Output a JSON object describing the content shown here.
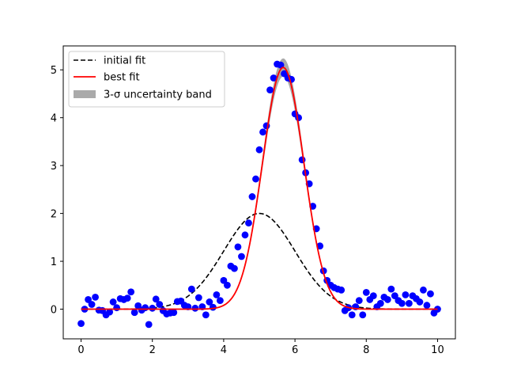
{
  "chart_data": {
    "type": "scatter",
    "title": "",
    "xlabel": "",
    "ylabel": "",
    "xlim": [
      -0.5,
      10.5
    ],
    "ylim": [
      -0.62,
      5.5
    ],
    "xticks": [
      0,
      2,
      4,
      6,
      8,
      10
    ],
    "yticks": [
      0,
      1,
      2,
      3,
      4,
      5
    ],
    "grid": false,
    "legend_position": "top-left",
    "colors": {
      "points": "#0000ff",
      "initial_fit": "#000000",
      "best_fit": "#ff0000",
      "band": "#aaaaaa"
    },
    "legend": [
      {
        "key": "initial_fit",
        "label": "initial fit",
        "style": "dashed-line"
      },
      {
        "key": "best_fit",
        "label": "best fit",
        "style": "solid-line"
      },
      {
        "key": "band",
        "label": "3-σ uncertainty band",
        "style": "patch"
      }
    ],
    "initial_fit": {
      "amplitude": 2.0,
      "center": 5.0,
      "sigma": 1.0
    },
    "best_fit": {
      "amplitude": 5.05,
      "center": 5.67,
      "sigma": 0.58
    },
    "band": {
      "half_width_at_peak": 0.18
    },
    "fit_x_range": [
      0,
      10
    ],
    "points": {
      "x": [
        0.0,
        0.1,
        0.2,
        0.3,
        0.4,
        0.5,
        0.6,
        0.7,
        0.8,
        0.9,
        1.0,
        1.1,
        1.2,
        1.3,
        1.4,
        1.5,
        1.6,
        1.7,
        1.8,
        1.9,
        2.0,
        2.1,
        2.2,
        2.3,
        2.4,
        2.5,
        2.6,
        2.7,
        2.8,
        2.9,
        3.0,
        3.1,
        3.2,
        3.3,
        3.4,
        3.5,
        3.6,
        3.7,
        3.8,
        3.9,
        4.0,
        4.1,
        4.2,
        4.3,
        4.4,
        4.5,
        4.6,
        4.7,
        4.8,
        4.9,
        5.0,
        5.1,
        5.2,
        5.3,
        5.4,
        5.5,
        5.6,
        5.7,
        5.8,
        5.9,
        6.0,
        6.1,
        6.2,
        6.3,
        6.4,
        6.5,
        6.6,
        6.7,
        6.8,
        6.9,
        7.0,
        7.1,
        7.2,
        7.3,
        7.4,
        7.5,
        7.6,
        7.7,
        7.8,
        7.9,
        8.0,
        8.1,
        8.2,
        8.3,
        8.4,
        8.5,
        8.6,
        8.7,
        8.8,
        8.9,
        9.0,
        9.1,
        9.2,
        9.3,
        9.4,
        9.5,
        9.6,
        9.7,
        9.8,
        9.9,
        10.0
      ],
      "y": [
        -0.3,
        0.0,
        0.2,
        0.1,
        0.25,
        -0.02,
        -0.03,
        -0.12,
        -0.06,
        0.15,
        0.03,
        0.22,
        0.2,
        0.23,
        0.36,
        -0.07,
        0.07,
        -0.02,
        0.03,
        -0.32,
        0.02,
        0.21,
        0.1,
        -0.03,
        -0.1,
        -0.08,
        -0.07,
        0.16,
        0.17,
        0.08,
        0.05,
        0.42,
        0.02,
        0.24,
        0.05,
        -0.12,
        0.15,
        0.04,
        0.3,
        0.18,
        0.6,
        0.5,
        0.9,
        0.85,
        1.3,
        1.1,
        1.55,
        1.8,
        2.35,
        2.72,
        3.33,
        3.7,
        3.83,
        4.58,
        4.83,
        5.12,
        5.1,
        4.92,
        4.83,
        4.8,
        4.08,
        4.0,
        3.12,
        2.85,
        2.62,
        2.15,
        1.68,
        1.32,
        0.8,
        0.6,
        0.5,
        0.45,
        0.42,
        0.4,
        -0.03,
        0.03,
        -0.12,
        0.05,
        0.18,
        -0.12,
        0.35,
        0.2,
        0.28,
        0.05,
        0.12,
        0.25,
        0.2,
        0.42,
        0.28,
        0.18,
        0.12,
        0.3,
        0.12,
        0.28,
        0.22,
        0.15,
        0.4,
        0.08,
        0.32,
        -0.08,
        0.0
      ]
    }
  }
}
